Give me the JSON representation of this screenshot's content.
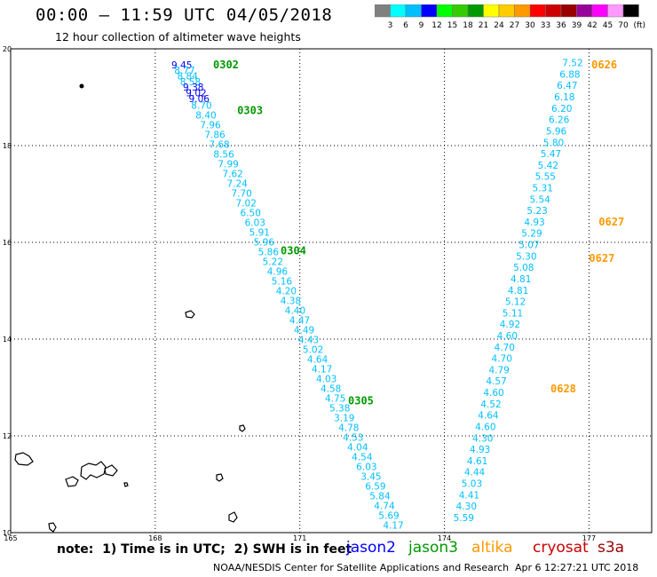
{
  "title": "00:00 – 11:59 UTC 04/05/2018",
  "subtitle": "12 hour collection of altimeter wave heights",
  "colorbar": {
    "unit": "(ft)",
    "labels": [
      "3",
      "6",
      "9",
      "12",
      "15",
      "18",
      "21",
      "24",
      "27",
      "30",
      "33",
      "36",
      "39",
      "42",
      "45",
      "70"
    ],
    "colors": [
      "#808080",
      "#00ffff",
      "#00bfff",
      "#0000ff",
      "#00ff00",
      "#33cc00",
      "#009900",
      "#ffff00",
      "#ffcc00",
      "#ff9900",
      "#ff0000",
      "#cc0000",
      "#990000",
      "#990099",
      "#ff00ff",
      "#ff99ff",
      "#000000"
    ]
  },
  "axes": {
    "x_ticks": [
      "165",
      "168",
      "171",
      "174",
      "177"
    ],
    "y_ticks": [
      "20",
      "18",
      "16",
      "14",
      "12",
      "10"
    ]
  },
  "chart_data": {
    "type": "scatter",
    "x_range": [
      165,
      178.3
    ],
    "y_range": [
      10,
      20
    ],
    "grid": true,
    "tracks": [
      {
        "satellite": "jason2",
        "color": "#0000ff",
        "lon_start": 168.55,
        "lat_start": 19.6,
        "lon_end": 168.91,
        "lat_end": 18.9,
        "values": [
          "9.45",
          "8.77",
          "8.84",
          "8.58",
          "9.38",
          "9.02",
          "9.06"
        ],
        "label_colors": [
          "#0000ff",
          "#00bfff",
          "#00bfff",
          "#00bfff",
          "#0000ff",
          "#0000ff",
          "#0000ff"
        ]
      },
      {
        "satellite": "jason3",
        "color": "#00bfff",
        "lon_start": 168.96,
        "lat_start": 18.76,
        "lon_end": 172.94,
        "lat_end": 10.08,
        "values": [
          "8.70",
          "8.40",
          "7.96",
          "7.86",
          "7.68",
          "8.56",
          "7.99",
          "7.62",
          "7.24",
          "7.70",
          "7.02",
          "6.50",
          "6.03",
          "5.91",
          "5.96",
          "5.86",
          "5.22",
          "4.96",
          "5.16",
          "4.20",
          "4.38",
          "4.40",
          "4.47",
          "4.49",
          "4.43",
          "5.02",
          "4.64",
          "4.17",
          "4.03",
          "4.58",
          "4.75",
          "5.38",
          "3.19",
          "4.78",
          "4.53",
          "4.04",
          "4.54",
          "6.03",
          "3.45",
          "6.59",
          "5.84",
          "4.74",
          "5.69",
          "4.17"
        ]
      },
      {
        "satellite": "jason3",
        "color": "#00bfff",
        "lon_start": 176.66,
        "lat_start": 19.64,
        "lon_end": 174.4,
        "lat_end": 10.24,
        "values": [
          "7.52",
          "6.88",
          "6.47",
          "6.18",
          "6.20",
          "6.26",
          "5.96",
          "5.80",
          "5.47",
          "5.42",
          "5.55",
          "5.31",
          "5.54",
          "5.23",
          "4.93",
          "5.29",
          "5.07",
          "5.30",
          "5.08",
          "4.81",
          "4.81",
          "5.12",
          "5.11",
          "4.92",
          "4.60",
          "4.70",
          "4.70",
          "4.79",
          "4.57",
          "4.60",
          "4.52",
          "4.64",
          "4.60",
          "4.30",
          "4.93",
          "4.61",
          "4.44",
          "5.03",
          "4.41",
          "4.30",
          "5.59"
        ]
      }
    ],
    "time_labels": [
      {
        "text": "0302",
        "lon": 169.2,
        "lat": 19.6,
        "color": "#009900"
      },
      {
        "text": "0303",
        "lon": 169.7,
        "lat": 18.65,
        "color": "#009900"
      },
      {
        "text": "0304",
        "lon": 170.6,
        "lat": 15.75,
        "color": "#009900"
      },
      {
        "text": "0305",
        "lon": 172.0,
        "lat": 12.65,
        "color": "#009900"
      },
      {
        "text": "0626",
        "lon": 177.05,
        "lat": 19.6,
        "color": "#ff9900"
      },
      {
        "text": "0627",
        "lon": 177.2,
        "lat": 16.35,
        "color": "#ff9900"
      },
      {
        "text": "0627",
        "lon": 177.0,
        "lat": 15.6,
        "color": "#ff9900"
      },
      {
        "text": "0628",
        "lon": 176.2,
        "lat": 12.9,
        "color": "#ff9900"
      }
    ]
  },
  "note": "note:  1) Time is in UTC;  2) SWH is in feet",
  "legend": {
    "jason2": {
      "text": "jason2",
      "color": "#0000ff"
    },
    "jason3": {
      "text": "jason3",
      "color": "#009900"
    },
    "altika": {
      "text": "altika",
      "color": "#ff9900"
    },
    "cryosat": {
      "text": "cryosat",
      "color": "#cc0000"
    },
    "s3a": {
      "text": "s3a",
      "color": "#990000"
    }
  },
  "credit": "NOAA/NESDIS Center for Satellite Applications and Research",
  "timestamp": "Apr  6 12:27:21 UTC 2018"
}
